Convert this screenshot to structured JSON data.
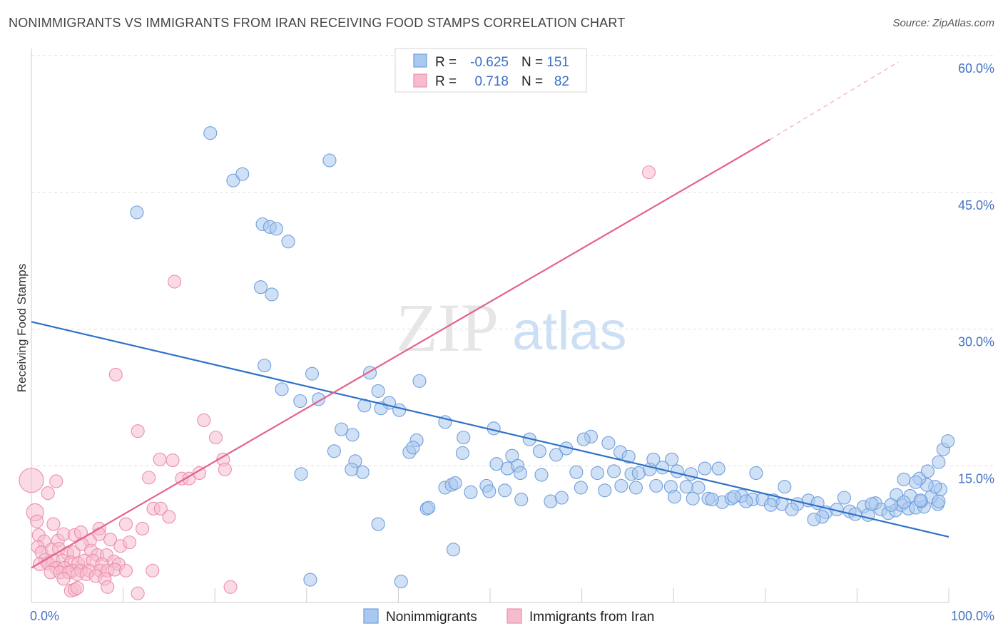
{
  "title": "NONIMMIGRANTS VS IMMIGRANTS FROM IRAN RECEIVING FOOD STAMPS CORRELATION CHART",
  "source": "Source: ZipAtlas.com",
  "watermark": {
    "zip": "ZIP",
    "atlas": "atlas"
  },
  "colors": {
    "blue_fill": "#a9c8ef",
    "blue_stroke": "#6f9fdc",
    "blue_line": "#2f72c8",
    "pink_fill": "#f6bccd",
    "pink_stroke": "#ec8fab",
    "pink_line": "#e5628c",
    "grid": "#dddddd",
    "tick_text": "#4472c4"
  },
  "legend": {
    "rows": [
      {
        "r_label": "R =",
        "r_value": "-0.625",
        "n_label": "N =",
        "n_value": "151"
      },
      {
        "r_label": "R =",
        "r_value": "0.718",
        "n_label": "N =",
        "n_value": "82"
      }
    ]
  },
  "chart_data": {
    "type": "scatter",
    "xlabel": "",
    "ylabel": "Receiving Food Stamps",
    "xlim": [
      0,
      100
    ],
    "ylim": [
      0,
      60
    ],
    "x_tick_labels": [
      "0.0%",
      "100.0%"
    ],
    "y_ticks": [
      15,
      30,
      45,
      60
    ],
    "y_tick_labels": [
      "15.0%",
      "30.0%",
      "45.0%",
      "60.0%"
    ],
    "grid": true,
    "legend_position": "bottom-center",
    "series": [
      {
        "name": "Nonimmigrants",
        "color": "#a9c8ef",
        "trend": {
          "x0": 0,
          "y0": 30.8,
          "x1": 100,
          "y1": 7.2
        },
        "points": [
          [
            19.5,
            51.5
          ],
          [
            32.5,
            48.5
          ],
          [
            22,
            46.3
          ],
          [
            23,
            47
          ],
          [
            11.5,
            42.8
          ],
          [
            25.2,
            41.5
          ],
          [
            26,
            41.2
          ],
          [
            26.7,
            41
          ],
          [
            28,
            39.6
          ],
          [
            25,
            34.6
          ],
          [
            26.2,
            33.8
          ],
          [
            25.4,
            26
          ],
          [
            30.6,
            25.1
          ],
          [
            36.9,
            25.2
          ],
          [
            42.3,
            24.3
          ],
          [
            27.3,
            23.4
          ],
          [
            37.8,
            23.2
          ],
          [
            29.3,
            22.1
          ],
          [
            31.3,
            22.3
          ],
          [
            36.3,
            21.6
          ],
          [
            39,
            21.9
          ],
          [
            38.1,
            21.3
          ],
          [
            40.1,
            21.1
          ],
          [
            45.1,
            19.8
          ],
          [
            33.8,
            19
          ],
          [
            35,
            18.4
          ],
          [
            42,
            17.8
          ],
          [
            47.1,
            18.1
          ],
          [
            50.4,
            19.1
          ],
          [
            54.3,
            17.9
          ],
          [
            61,
            18.2
          ],
          [
            47,
            16.4
          ],
          [
            41.2,
            16.5
          ],
          [
            41.6,
            17
          ],
          [
            33,
            16.6
          ],
          [
            35.3,
            15.5
          ],
          [
            36.1,
            14.3
          ],
          [
            29.4,
            14.1
          ],
          [
            52.4,
            16.1
          ],
          [
            55.4,
            16.6
          ],
          [
            57.2,
            16.2
          ],
          [
            58.3,
            16.9
          ],
          [
            60.2,
            17.9
          ],
          [
            62.9,
            17.5
          ],
          [
            64.2,
            16.5
          ],
          [
            65.1,
            16
          ],
          [
            67.8,
            15.7
          ],
          [
            69.8,
            15.7
          ],
          [
            50.7,
            15.2
          ],
          [
            51.9,
            14.7
          ],
          [
            53,
            15
          ],
          [
            53.3,
            14.2
          ],
          [
            55.6,
            14
          ],
          [
            59.4,
            14.3
          ],
          [
            61.7,
            14.2
          ],
          [
            63.5,
            14.4
          ],
          [
            65.4,
            14.1
          ],
          [
            66.2,
            14.2
          ],
          [
            67.4,
            14.6
          ],
          [
            68.8,
            14.8
          ],
          [
            70.4,
            14.4
          ],
          [
            71.9,
            14.1
          ],
          [
            73.4,
            14.7
          ],
          [
            74.9,
            14.7
          ],
          [
            79,
            14.2
          ],
          [
            82.1,
            12.7
          ],
          [
            45.1,
            12.6
          ],
          [
            45.8,
            12.9
          ],
          [
            46.2,
            13.1
          ],
          [
            47.9,
            12.1
          ],
          [
            49.6,
            12.8
          ],
          [
            49.9,
            12.2
          ],
          [
            51.6,
            12.3
          ],
          [
            53.4,
            11.3
          ],
          [
            56.6,
            11.1
          ],
          [
            59.9,
            12.6
          ],
          [
            62.5,
            12.3
          ],
          [
            64.3,
            12.8
          ],
          [
            65.9,
            12.6
          ],
          [
            68.1,
            12.8
          ],
          [
            69.7,
            12.7
          ],
          [
            71.4,
            12.7
          ],
          [
            72.7,
            12.6
          ],
          [
            73.8,
            11.4
          ],
          [
            75.3,
            11
          ],
          [
            76.3,
            11.4
          ],
          [
            77.4,
            11.7
          ],
          [
            78.6,
            11.3
          ],
          [
            79.7,
            11.3
          ],
          [
            80.9,
            11.2
          ],
          [
            81.8,
            10.8
          ],
          [
            83.5,
            10.8
          ],
          [
            84.7,
            11.2
          ],
          [
            85.7,
            10.9
          ],
          [
            86.6,
            9.9
          ],
          [
            89.2,
            10
          ],
          [
            88.6,
            11.5
          ],
          [
            90.7,
            10.5
          ],
          [
            91.2,
            9.6
          ],
          [
            92,
            10.9
          ],
          [
            92.6,
            10.2
          ],
          [
            93.4,
            9.8
          ],
          [
            94.2,
            10.1
          ],
          [
            94.8,
            10.7
          ],
          [
            95.6,
            10.3
          ],
          [
            96.4,
            10.4
          ],
          [
            97.3,
            10.5
          ],
          [
            98.8,
            10.8
          ],
          [
            89.8,
            9.7
          ],
          [
            95.8,
            11.7
          ],
          [
            97,
            11.1
          ],
          [
            98.1,
            11.6
          ],
          [
            98.9,
            11.1
          ],
          [
            99.1,
            12.4
          ],
          [
            98.5,
            12.7
          ],
          [
            97.6,
            12.9
          ],
          [
            94.3,
            11.8
          ],
          [
            96.9,
            11.2
          ],
          [
            95.1,
            11
          ],
          [
            93.7,
            10.7
          ],
          [
            91.6,
            10.8
          ],
          [
            87.8,
            10.2
          ],
          [
            86.2,
            9.4
          ],
          [
            85.3,
            9.1
          ],
          [
            82.9,
            10.2
          ],
          [
            80.6,
            10.7
          ],
          [
            77.9,
            11.1
          ],
          [
            76.6,
            11.6
          ],
          [
            74.2,
            11.3
          ],
          [
            72.1,
            11.4
          ],
          [
            70.1,
            11.6
          ],
          [
            57.8,
            11.5
          ],
          [
            34.9,
            14.6
          ],
          [
            43.1,
            10.3
          ],
          [
            43.3,
            10.4
          ],
          [
            37.8,
            8.6
          ],
          [
            46,
            5.8
          ],
          [
            30.4,
            2.5
          ],
          [
            40.3,
            2.3
          ],
          [
            95.1,
            13.5
          ],
          [
            96.8,
            13.6
          ],
          [
            96.4,
            13.2
          ],
          [
            97.7,
            14.4
          ],
          [
            98.9,
            15.4
          ],
          [
            99.4,
            16.8
          ],
          [
            99.9,
            17.7
          ]
        ]
      },
      {
        "name": "Immigrants from Iran",
        "color": "#f6bccd",
        "trend": {
          "x0": 0,
          "y0": 3.8,
          "x1": 80.5,
          "y1": 50.8
        },
        "trend_dashed": {
          "x0": 80.5,
          "y0": 50.8,
          "x1": 94.5,
          "y1": 59.3
        },
        "points": [
          [
            67.3,
            47.2
          ],
          [
            15.6,
            35.2
          ],
          [
            9.2,
            25
          ],
          [
            11.6,
            18.8
          ],
          [
            18.8,
            20
          ],
          [
            20.1,
            18.1
          ],
          [
            14,
            15.7
          ],
          [
            15.4,
            15.6
          ],
          [
            20.9,
            15.7
          ],
          [
            12.8,
            13.7
          ],
          [
            16.4,
            13.6
          ],
          [
            17.2,
            13.6
          ],
          [
            18.3,
            14.2
          ],
          [
            21.1,
            14.6
          ],
          [
            2.7,
            13.3
          ],
          [
            0,
            13.4
          ],
          [
            1.8,
            12
          ],
          [
            13.3,
            10.3
          ],
          [
            14.1,
            10.3
          ],
          [
            15,
            9.4
          ],
          [
            0.4,
            9.9
          ],
          [
            0.6,
            8.9
          ],
          [
            2.4,
            8.6
          ],
          [
            7.4,
            8.1
          ],
          [
            10.3,
            8.6
          ],
          [
            12.1,
            8.1
          ],
          [
            0.8,
            7.4
          ],
          [
            1.4,
            6.7
          ],
          [
            2.9,
            6.8
          ],
          [
            3.5,
            7.5
          ],
          [
            4.7,
            7.4
          ],
          [
            5.4,
            7.7
          ],
          [
            6.4,
            6.8
          ],
          [
            7.4,
            7.5
          ],
          [
            8.6,
            6.9
          ],
          [
            9.7,
            6.2
          ],
          [
            10.7,
            6.6
          ],
          [
            0.7,
            6.1
          ],
          [
            1.1,
            5.5
          ],
          [
            2.2,
            5.8
          ],
          [
            3,
            5.9
          ],
          [
            3.9,
            5.4
          ],
          [
            4.6,
            5.5
          ],
          [
            5.5,
            6.4
          ],
          [
            6.5,
            5.7
          ],
          [
            7.2,
            5.2
          ],
          [
            8.2,
            5.2
          ],
          [
            9,
            4.5
          ],
          [
            1.5,
            4.7
          ],
          [
            2.4,
            4.6
          ],
          [
            3.4,
            4.6
          ],
          [
            4.3,
            4.4
          ],
          [
            5.1,
            4.3
          ],
          [
            5.8,
            4.6
          ],
          [
            6.7,
            4.6
          ],
          [
            7.7,
            4.2
          ],
          [
            9.5,
            4.2
          ],
          [
            0.9,
            4.2
          ],
          [
            1.8,
            4.3
          ],
          [
            2.7,
            3.8
          ],
          [
            3.6,
            3.8
          ],
          [
            4.5,
            3.5
          ],
          [
            5.4,
            3.5
          ],
          [
            6.3,
            3.5
          ],
          [
            7.5,
            3.5
          ],
          [
            8.3,
            3.5
          ],
          [
            9.1,
            3.6
          ],
          [
            10.3,
            3.5
          ],
          [
            13.2,
            3.5
          ],
          [
            2.1,
            3.3
          ],
          [
            3.1,
            3.3
          ],
          [
            4.1,
            3.3
          ],
          [
            5,
            3.1
          ],
          [
            6,
            3.1
          ],
          [
            7,
            2.9
          ],
          [
            8,
            2.6
          ],
          [
            3.5,
            2.6
          ],
          [
            4.3,
            1.3
          ],
          [
            4.7,
            1.4
          ],
          [
            5,
            1.6
          ],
          [
            8.3,
            1.7
          ],
          [
            11.6,
            1
          ],
          [
            21.7,
            1.7
          ]
        ]
      }
    ]
  }
}
